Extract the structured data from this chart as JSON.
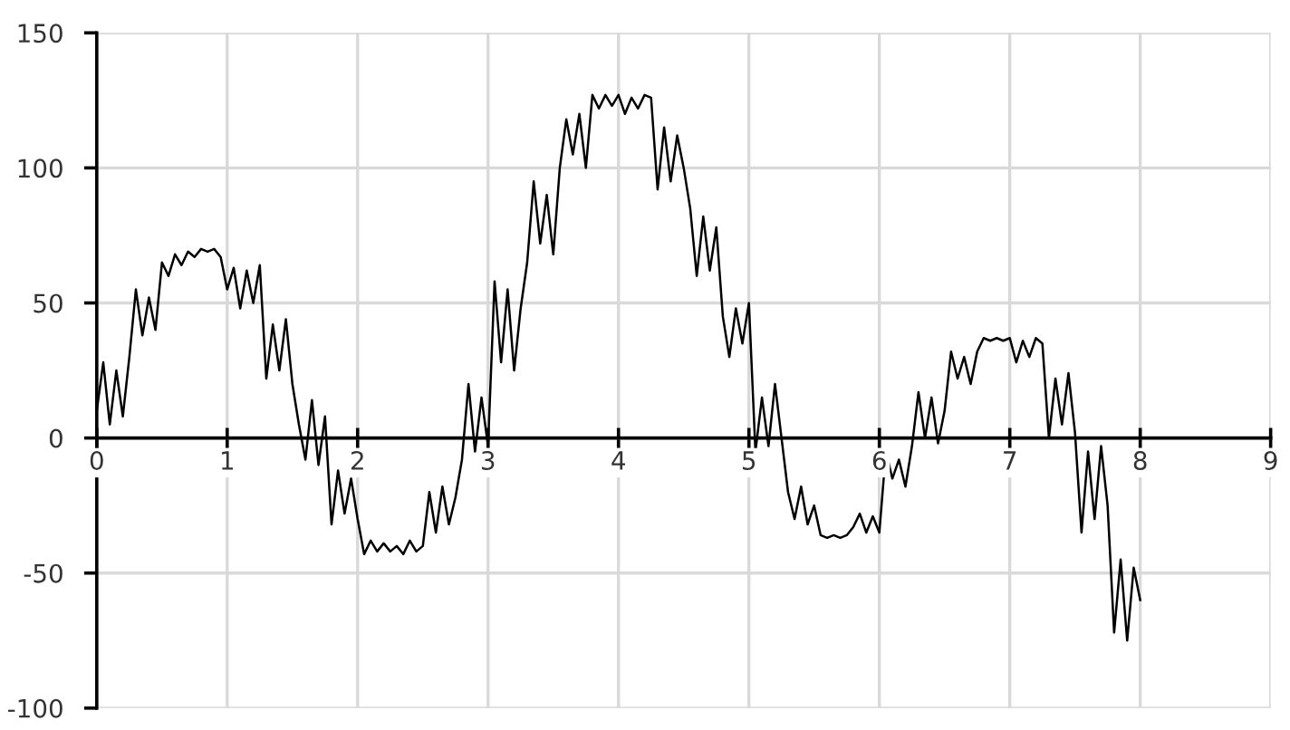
{
  "chart_data": {
    "type": "line",
    "x": [
      0,
      0.05,
      0.1,
      0.15,
      0.2,
      0.25,
      0.3,
      0.35,
      0.4,
      0.45,
      0.5,
      0.55,
      0.6,
      0.65,
      0.7,
      0.75,
      0.8,
      0.85,
      0.9,
      0.95,
      1.0,
      1.05,
      1.1,
      1.15,
      1.2,
      1.25,
      1.3,
      1.35,
      1.4,
      1.45,
      1.5,
      1.55,
      1.6,
      1.65,
      1.7,
      1.75,
      1.8,
      1.85,
      1.9,
      1.95,
      2.0,
      2.05,
      2.1,
      2.15,
      2.2,
      2.25,
      2.3,
      2.35,
      2.4,
      2.45,
      2.5,
      2.55,
      2.6,
      2.65,
      2.7,
      2.75,
      2.8,
      2.85,
      2.9,
      2.95,
      3.0,
      3.05,
      3.1,
      3.15,
      3.2,
      3.25,
      3.3,
      3.35,
      3.4,
      3.45,
      3.5,
      3.55,
      3.6,
      3.65,
      3.7,
      3.75,
      3.8,
      3.85,
      3.9,
      3.95,
      4.0,
      4.05,
      4.1,
      4.15,
      4.2,
      4.25,
      4.3,
      4.35,
      4.4,
      4.45,
      4.5,
      4.55,
      4.6,
      4.65,
      4.7,
      4.75,
      4.8,
      4.85,
      4.9,
      4.95,
      5.0,
      5.05,
      5.1,
      5.15,
      5.2,
      5.25,
      5.3,
      5.35,
      5.4,
      5.45,
      5.5,
      5.55,
      5.6,
      5.65,
      5.7,
      5.75,
      5.8,
      5.85,
      5.9,
      5.95,
      6.0,
      6.05,
      6.1,
      6.15,
      6.2,
      6.25,
      6.3,
      6.35,
      6.4,
      6.45,
      6.5,
      6.55,
      6.6,
      6.65,
      6.7,
      6.75,
      6.8,
      6.85,
      6.9,
      6.95,
      7.0,
      7.05,
      7.1,
      7.15,
      7.2,
      7.25,
      7.3,
      7.35,
      7.4,
      7.45,
      7.5,
      7.55,
      7.6,
      7.65,
      7.7,
      7.75,
      7.8,
      7.85,
      7.9,
      7.95,
      8.0
    ],
    "series": [
      {
        "color": "#000000",
        "values": [
          10,
          28,
          5,
          25,
          8,
          30,
          55,
          38,
          52,
          40,
          65,
          60,
          68,
          64,
          69,
          67,
          70,
          69,
          70,
          67,
          55,
          63,
          48,
          62,
          50,
          64,
          22,
          42,
          25,
          44,
          20,
          5,
          -8,
          14,
          -10,
          8,
          -32,
          -12,
          -28,
          -15,
          -30,
          -43,
          -38,
          -42,
          -39,
          -42,
          -40,
          -43,
          -38,
          -42,
          -40,
          -20,
          -35,
          -18,
          -32,
          -22,
          -8,
          20,
          -5,
          15,
          -3,
          58,
          28,
          55,
          25,
          48,
          65,
          95,
          72,
          90,
          68,
          100,
          118,
          105,
          120,
          100,
          127,
          122,
          127,
          123,
          127,
          120,
          126,
          122,
          127,
          126,
          92,
          115,
          95,
          112,
          100,
          85,
          60,
          82,
          62,
          78,
          45,
          30,
          48,
          35,
          50,
          -5,
          15,
          -3,
          20,
          0,
          -20,
          -30,
          -18,
          -32,
          -25,
          -36,
          -37,
          -36,
          -37,
          -36,
          -33,
          -28,
          -35,
          -29,
          -35,
          -5,
          -15,
          -8,
          -18,
          -3,
          17,
          0,
          15,
          -2,
          10,
          32,
          22,
          30,
          20,
          32,
          37,
          36,
          37,
          36,
          37,
          28,
          36,
          30,
          37,
          35,
          0,
          22,
          5,
          24,
          2,
          -35,
          -5,
          -30,
          -3,
          -25,
          -72,
          -45,
          -75,
          -48,
          -60
        ]
      }
    ],
    "xlim": [
      0,
      9
    ],
    "ylim": [
      -100,
      150
    ],
    "xticks": [
      0,
      1,
      2,
      3,
      4,
      5,
      6,
      7,
      8,
      9
    ],
    "yticks": [
      -100,
      -50,
      0,
      50,
      100,
      150
    ],
    "grid": true,
    "line_style": "solid",
    "marker": "none"
  }
}
